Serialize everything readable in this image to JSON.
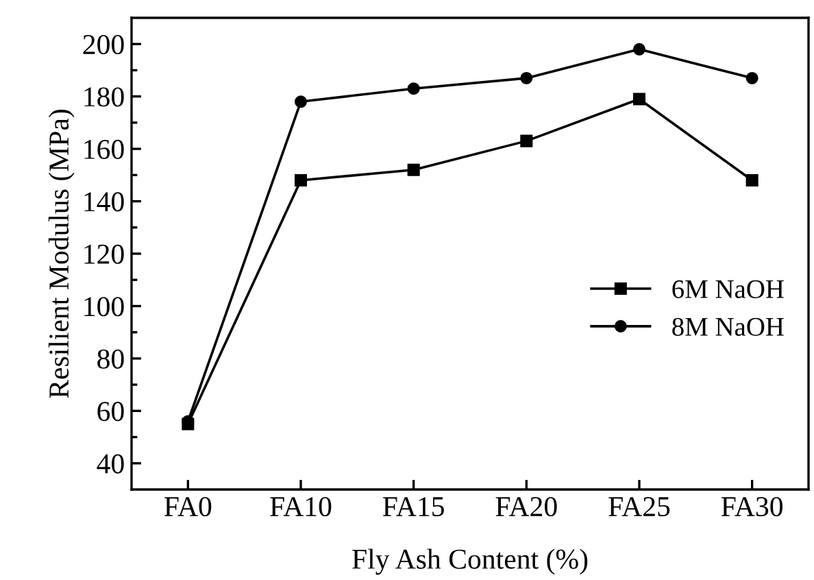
{
  "chart_data": {
    "type": "line",
    "xlabel": "Fly Ash Content (%)",
    "ylabel": "Resilient Modulus (MPa)",
    "categories": [
      "FA0",
      "FA10",
      "FA15",
      "FA20",
      "FA25",
      "FA30"
    ],
    "series": [
      {
        "name": "6M NaOH",
        "color": "#000000",
        "marker": "square",
        "values": [
          55,
          148,
          152,
          163,
          179,
          148
        ]
      },
      {
        "name": "8M NaOH",
        "color": "#000000",
        "marker": "circle",
        "values": [
          56,
          178,
          183,
          187,
          198,
          187
        ]
      }
    ],
    "ylim": [
      30,
      210
    ],
    "yticks": [
      40,
      {
        "value": 50,
        "label": null
      },
      60,
      {
        "value": 70,
        "label": null
      },
      80,
      {
        "value": 90,
        "label": null
      },
      100,
      {
        "value": 110,
        "label": null
      },
      120,
      {
        "value": 130,
        "label": null
      },
      140,
      {
        "value": 150,
        "label": null
      },
      160,
      {
        "value": 170,
        "label": null
      },
      180,
      {
        "value": 190,
        "label": null
      },
      200
    ],
    "legend": "right",
    "grid": false,
    "line_style": "solid"
  }
}
